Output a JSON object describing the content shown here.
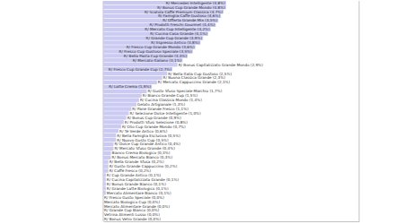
{
  "chart_data": {
    "type": "bar",
    "orientation": "horizontal",
    "color": "#cacaf2",
    "xlim": [
      0,
      10
    ],
    "tick_labels": false,
    "grid": false,
    "data_labels": true,
    "categories": [
      "R/ Mercedes Intelligente",
      "R/ Bonus Cup Grande Mondo",
      "R/ Scatola Caffè Premium Classica",
      "R/ Famiglia Caffè Gustoso",
      "R/ Offerta Grande Mix",
      "R/ Prodotti Freschi Gourmet",
      "R/ Mercato Cup Intelligente",
      "R/ Cucina Casa Grande",
      "R/ Grande Cup Grande",
      "R/ Espresso Antico",
      "R/ Fresco Cup Grande Mondo",
      "R/ Fresco Cup Gustoso Speciale",
      "R/ Bella Pasta Cup Grande",
      "R/ Mercato Italiano",
      "R/ Bonus Capitalizzato Grande Mondo",
      "R/ Fresco Cup Grande Cup",
      "R/ Bella Italia Cup Gustoso",
      "R/ Buona Classica Grande",
      "R/ Mercato Cappuccino Grande",
      "R/ Latte Crema",
      "R/ Gusto Sfuso Speciale Marchio",
      "R/ Bianco Grande Cup",
      "R/ Cucina Classica Mondo",
      "Gelato Artigianale",
      "R/ Pane Grande Fresco",
      "R/ Selezione Dolce Intelligente",
      "R/ Bonus Cup Grande",
      "R/ Prodotti Sfusi Selezione",
      "R/ Olio Cup Grande Mondo",
      "R/ Tè Verde Antico",
      "R/ Bella Famiglia Esclusiva",
      "R/ Nuovo Gusto Cup",
      "R/ Dolce Cup Grande Antico",
      "R/ Mercato Sfuso Grande",
      "Bianco Crema Biologico",
      "R/ Bonus Mercato Bianco",
      "R/ Bella Grande Sfusa",
      "R/ Gusto Grande Cappuccino",
      "R/ Caffè Fresco",
      "R/ Cup Grande Antico",
      "R/ Cucina Capitalizzata Grande",
      "R/ Bonus Grande Bianco",
      "R/ Grande Latte Biologico",
      "Mercato Alimentare Bianco",
      "R/ Fresco Gusto Speciale",
      "Mercato Biologico Cup",
      "Mercato Alimentare Grande",
      "R/ Grande Cup Bianco",
      "Vetrina Alimenti Lusso",
      "R/ Bonus Vetro Grande"
    ],
    "values": [
      4.8,
      4.8,
      4.7,
      4.6,
      4.5,
      4.4,
      4.2,
      4.1,
      3.9,
      3.8,
      3.6,
      3.5,
      3.3,
      3.1,
      2.9,
      2.7,
      2.5,
      2.3,
      2.1,
      1.9,
      1.7,
      1.5,
      1.4,
      1.3,
      1.1,
      1.0,
      0.9,
      0.8,
      0.7,
      0.6,
      0.5,
      0.5,
      0.4,
      0.4,
      0.3,
      0.3,
      0.2,
      0.2,
      0.2,
      0.1,
      0.1,
      0.1,
      0.1,
      0.1,
      0.0,
      0.0,
      0.0,
      0.0,
      0.0,
      0.0
    ],
    "value_labels": [
      "(4,8%)",
      "(4,8%)",
      "(4,7%)",
      "(4,6%)",
      "(4,5%)",
      "(4,4%)",
      "(4,2%)",
      "(4,1%)",
      "(3,9%)",
      "(3,8%)",
      "(3,6%)",
      "(3,5%)",
      "(3,3%)",
      "(3,1%)",
      "(2,9%)",
      "(2,7%)",
      "(2,5%)",
      "(2,3%)",
      "(2,1%)",
      "(1,9%)",
      "(1,7%)",
      "(1,5%)",
      "(1,4%)",
      "(1,3%)",
      "(1,1%)",
      "(1,0%)",
      "(0,9%)",
      "(0,8%)",
      "(0,7%)",
      "(0,6%)",
      "(0,5%)",
      "(0,5%)",
      "(0,4%)",
      "(0,4%)",
      "(0,3%)",
      "(0,3%)",
      "(0,2%)",
      "(0,2%)",
      "(0,2%)",
      "(0,1%)",
      "(0,1%)",
      "(0,1%)",
      "(0,1%)",
      "(0,1%)",
      "(0,0%)",
      "(0,0%)",
      "(0,0%)",
      "(0,0%)",
      "(0,0%)",
      "(0,0%)"
    ]
  }
}
